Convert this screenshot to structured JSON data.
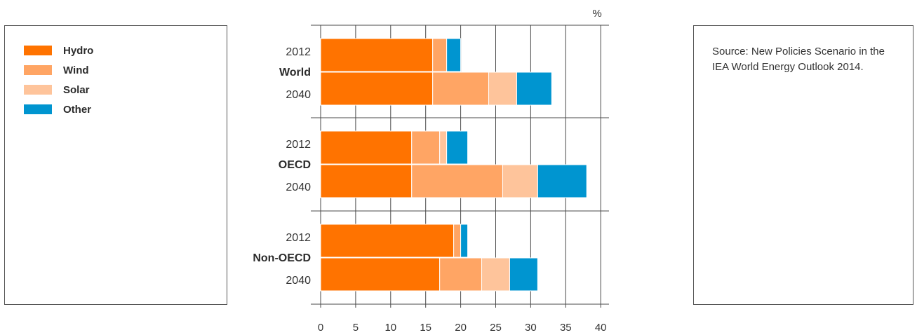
{
  "legend": {
    "items": [
      {
        "label": "Hydro",
        "color": "#ff7300"
      },
      {
        "label": "Wind",
        "color": "#ffa564"
      },
      {
        "label": "Solar",
        "color": "#fec49b"
      },
      {
        "label": "Other",
        "color": "#0095d0"
      }
    ]
  },
  "source": {
    "text": "Source: New Policies Scenario in the IEA World Energy Outlook 2014."
  },
  "chart_data": {
    "type": "bar",
    "orientation": "horizontal",
    "stacked": true,
    "unit_label": "%",
    "xlim": [
      0,
      40
    ],
    "x_ticks": [
      0,
      5,
      10,
      15,
      20,
      25,
      30,
      35,
      40
    ],
    "grid": true,
    "series_names": [
      "Hydro",
      "Wind",
      "Solar",
      "Other"
    ],
    "groups": [
      {
        "name": "World",
        "bars": [
          {
            "year": "2012",
            "values": [
              16,
              2,
              0,
              2
            ]
          },
          {
            "year": "2040",
            "values": [
              16,
              8,
              4,
              5
            ]
          }
        ]
      },
      {
        "name": "OECD",
        "bars": [
          {
            "year": "2012",
            "values": [
              13,
              4,
              1,
              3
            ]
          },
          {
            "year": "2040",
            "values": [
              13,
              13,
              5,
              7
            ]
          }
        ]
      },
      {
        "name": "Non-OECD",
        "bars": [
          {
            "year": "2012",
            "values": [
              19,
              1,
              0,
              1
            ]
          },
          {
            "year": "2040",
            "values": [
              17,
              6,
              4,
              4
            ]
          }
        ]
      }
    ]
  }
}
